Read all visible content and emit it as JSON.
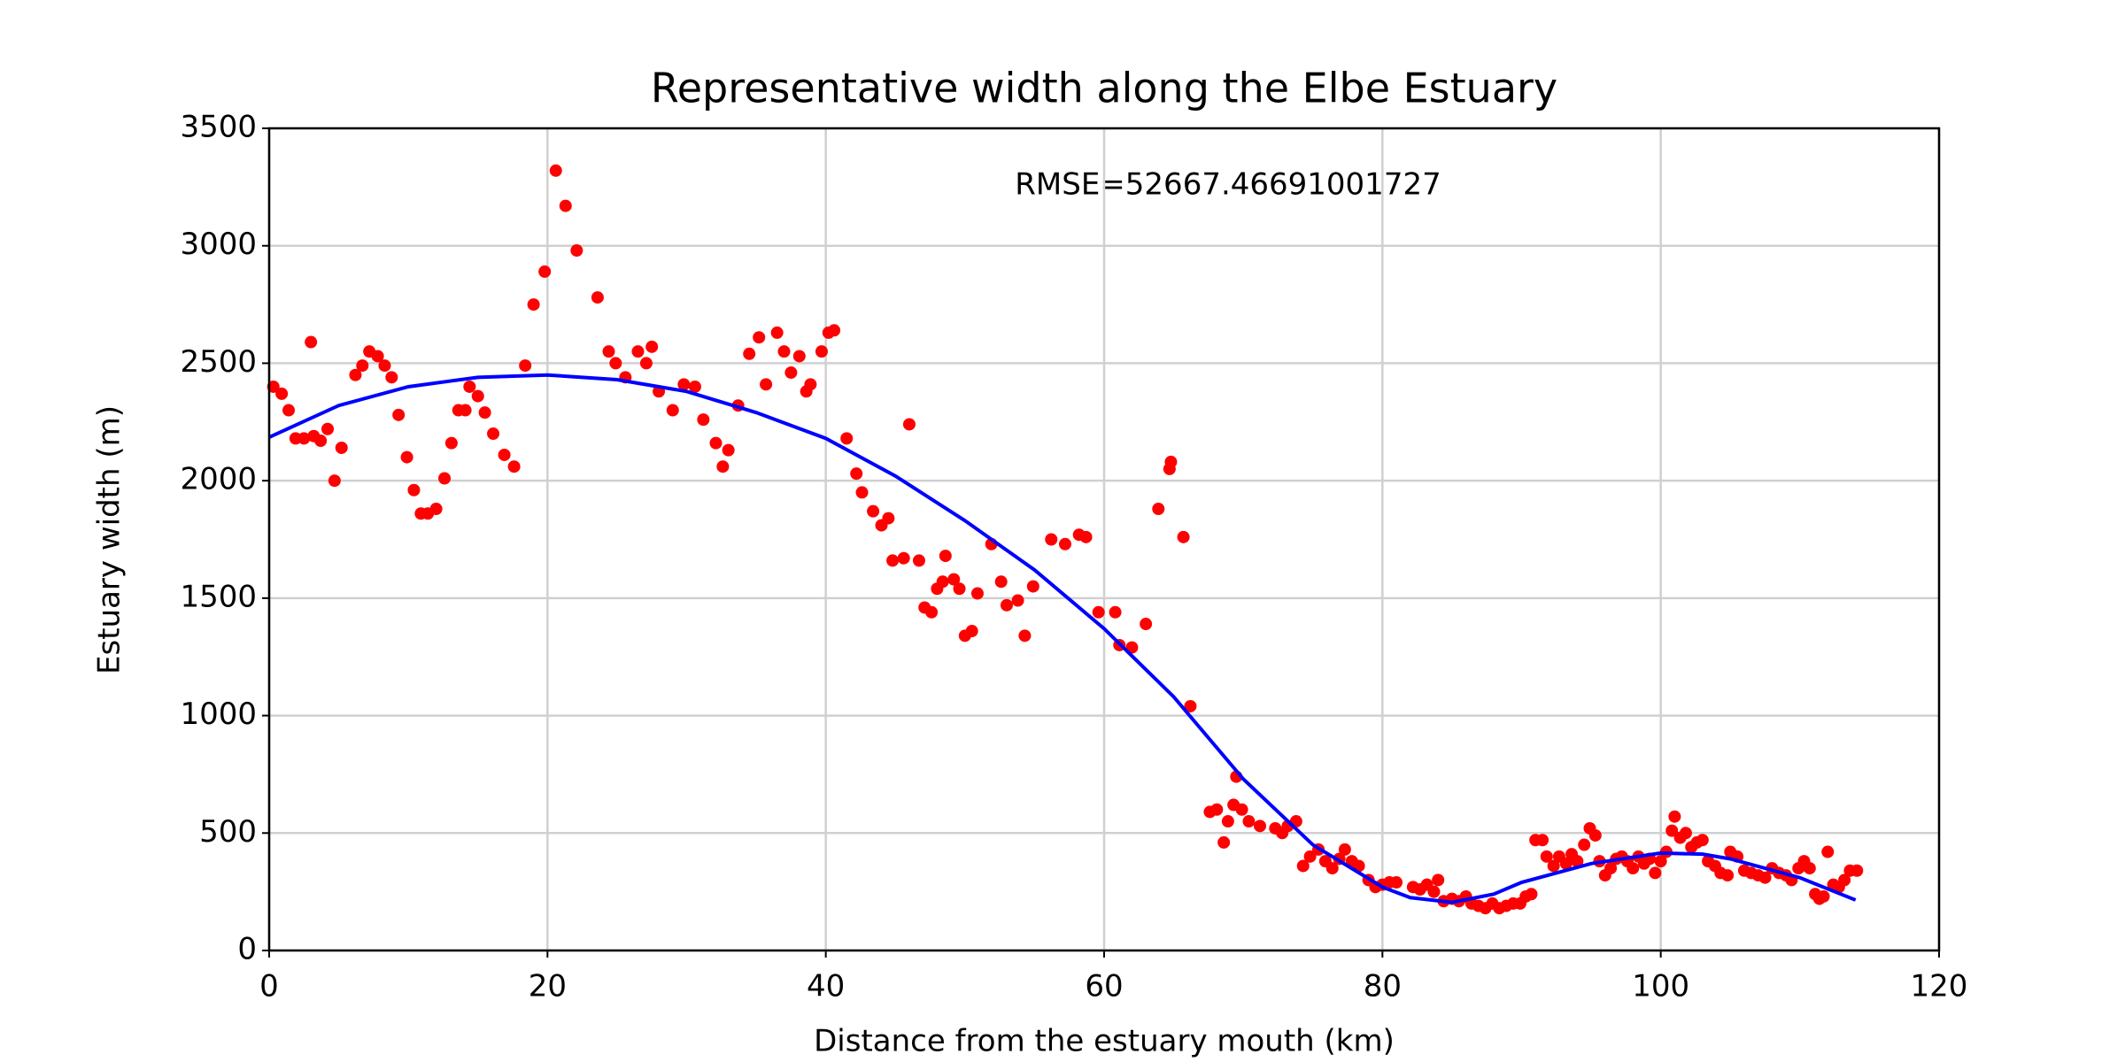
{
  "chart_data": {
    "type": "scatter",
    "title": "Representative width along the Elbe Estuary",
    "xlabel": "Distance from the estuary mouth (km)",
    "ylabel": "Estuary width (m)",
    "annotation": "RMSE=52667.46691001727",
    "xlim": [
      0,
      120
    ],
    "xticks": [
      0,
      20,
      40,
      60,
      80,
      100,
      120
    ],
    "ylim": [
      0,
      3500
    ],
    "yticks": [
      0,
      500,
      1000,
      1500,
      2000,
      2500,
      3000,
      3500
    ],
    "grid": true,
    "series": [
      {
        "type": "scatter",
        "color": "#ff0000",
        "x": [
          0.3,
          0.9,
          1.4,
          1.9,
          2.5,
          3.0,
          3.2,
          3.7,
          4.2,
          4.7,
          5.2,
          6.2,
          6.7,
          7.2,
          7.8,
          8.3,
          8.8,
          9.3,
          9.9,
          10.4,
          10.9,
          11.4,
          12.0,
          12.6,
          13.1,
          13.6,
          14.1,
          14.4,
          15.0,
          15.5,
          16.1,
          16.9,
          17.6,
          18.4,
          19.0,
          19.8,
          20.6,
          21.3,
          22.1,
          23.6,
          24.4,
          24.9,
          25.6,
          26.5,
          27.1,
          27.5,
          28.0,
          29.0,
          29.8,
          30.6,
          31.2,
          32.1,
          32.6,
          33.0,
          33.7,
          34.5,
          35.2,
          35.7,
          36.5,
          37.0,
          37.5,
          38.1,
          38.6,
          38.9,
          39.7,
          40.2,
          40.6,
          41.5,
          42.2,
          42.6,
          43.4,
          44.0,
          44.5,
          44.8,
          45.6,
          46.0,
          46.7,
          47.1,
          47.6,
          48.0,
          48.4,
          48.6,
          49.2,
          49.6,
          50.0,
          50.5,
          50.9,
          51.9,
          52.6,
          53.0,
          53.8,
          54.3,
          54.9,
          56.2,
          57.2,
          58.2,
          58.7,
          59.6,
          60.8,
          61.1,
          62.0,
          63.0,
          63.9,
          64.7,
          64.8,
          65.7,
          66.2,
          67.6,
          68.1,
          68.6,
          68.9,
          69.3,
          69.5,
          69.9,
          70.4,
          71.2,
          72.3,
          72.8,
          73.2,
          73.8,
          74.3,
          74.8,
          75.4,
          75.9,
          76.4,
          76.9,
          77.3,
          77.8,
          78.3,
          79.0,
          79.5,
          80.0,
          80.5,
          81.0,
          82.2,
          82.7,
          83.2,
          83.7,
          84.0,
          84.4,
          85.0,
          85.5,
          86.0,
          86.4,
          86.9,
          87.4,
          87.9,
          88.4,
          88.9,
          89.4,
          89.9,
          90.3,
          90.7,
          91.0,
          91.5,
          91.8,
          92.3,
          92.7,
          93.2,
          93.6,
          94.0,
          94.5,
          94.9,
          95.3,
          95.6,
          96.0,
          96.4,
          96.8,
          97.2,
          97.6,
          98.0,
          98.4,
          98.8,
          99.2,
          99.6,
          100.0,
          100.4,
          100.8,
          101.0,
          101.4,
          101.8,
          102.2,
          102.6,
          103.0,
          103.4,
          103.9,
          104.3,
          104.8,
          105.0,
          105.5,
          106.0,
          106.5,
          107.0,
          107.5,
          108.0,
          108.5,
          109.0,
          109.4,
          109.9,
          110.3,
          110.7,
          111.1,
          111.4,
          111.7,
          112.0,
          112.4,
          112.8,
          113.2,
          113.6,
          114.1
        ],
        "values": [
          2400,
          2370,
          2300,
          2180,
          2180,
          2590,
          2190,
          2170,
          2220,
          2000,
          2140,
          2450,
          2490,
          2550,
          2530,
          2490,
          2440,
          2280,
          2100,
          1960,
          1860,
          1860,
          1880,
          2010,
          2160,
          2300,
          2300,
          2400,
          2360,
          2290,
          2200,
          2110,
          2060,
          2490,
          2750,
          2890,
          3320,
          3170,
          2980,
          2780,
          2550,
          2500,
          2440,
          2550,
          2500,
          2570,
          2380,
          2300,
          2410,
          2400,
          2260,
          2160,
          2060,
          2130,
          2320,
          2540,
          2610,
          2410,
          2630,
          2550,
          2460,
          2530,
          2380,
          2410,
          2550,
          2630,
          2640,
          2180,
          2030,
          1950,
          1870,
          1810,
          1840,
          1660,
          1670,
          2240,
          1660,
          1460,
          1440,
          1540,
          1570,
          1680,
          1580,
          1540,
          1340,
          1360,
          1520,
          1730,
          1570,
          1470,
          1490,
          1340,
          1550,
          1750,
          1730,
          1770,
          1760,
          1440,
          1440,
          1300,
          1290,
          1390,
          1880,
          2050,
          2080,
          1760,
          1040,
          590,
          600,
          460,
          550,
          620,
          740,
          600,
          550,
          530,
          520,
          500,
          530,
          550,
          360,
          400,
          430,
          380,
          350,
          390,
          430,
          380,
          360,
          300,
          270,
          280,
          290,
          290,
          270,
          260,
          280,
          250,
          300,
          210,
          220,
          210,
          230,
          200,
          190,
          180,
          200,
          180,
          190,
          200,
          200,
          230,
          240,
          470,
          470,
          400,
          360,
          400,
          370,
          410,
          380,
          450,
          520,
          490,
          380,
          320,
          350,
          390,
          400,
          380,
          350,
          400,
          370,
          390,
          330,
          380,
          420,
          510,
          570,
          480,
          500,
          440,
          460,
          470,
          380,
          360,
          330,
          320,
          420,
          400,
          340,
          330,
          320,
          310,
          350,
          330,
          320,
          300,
          350,
          380,
          350,
          240,
          220,
          230,
          420,
          280,
          270,
          300,
          340,
          340
        ]
      },
      {
        "type": "line",
        "color": "#0000ff",
        "x": [
          0,
          5,
          10,
          15,
          20,
          25,
          30,
          35,
          40,
          45,
          50,
          55,
          60,
          65,
          70,
          75,
          80,
          82,
          85,
          88,
          90,
          95,
          100,
          103,
          105,
          110,
          114
        ],
        "values": [
          2185,
          2320,
          2400,
          2440,
          2450,
          2430,
          2380,
          2290,
          2180,
          2020,
          1830,
          1620,
          1370,
          1080,
          730,
          450,
          270,
          225,
          205,
          240,
          290,
          370,
          415,
          410,
          390,
          310,
          215
        ]
      }
    ]
  }
}
